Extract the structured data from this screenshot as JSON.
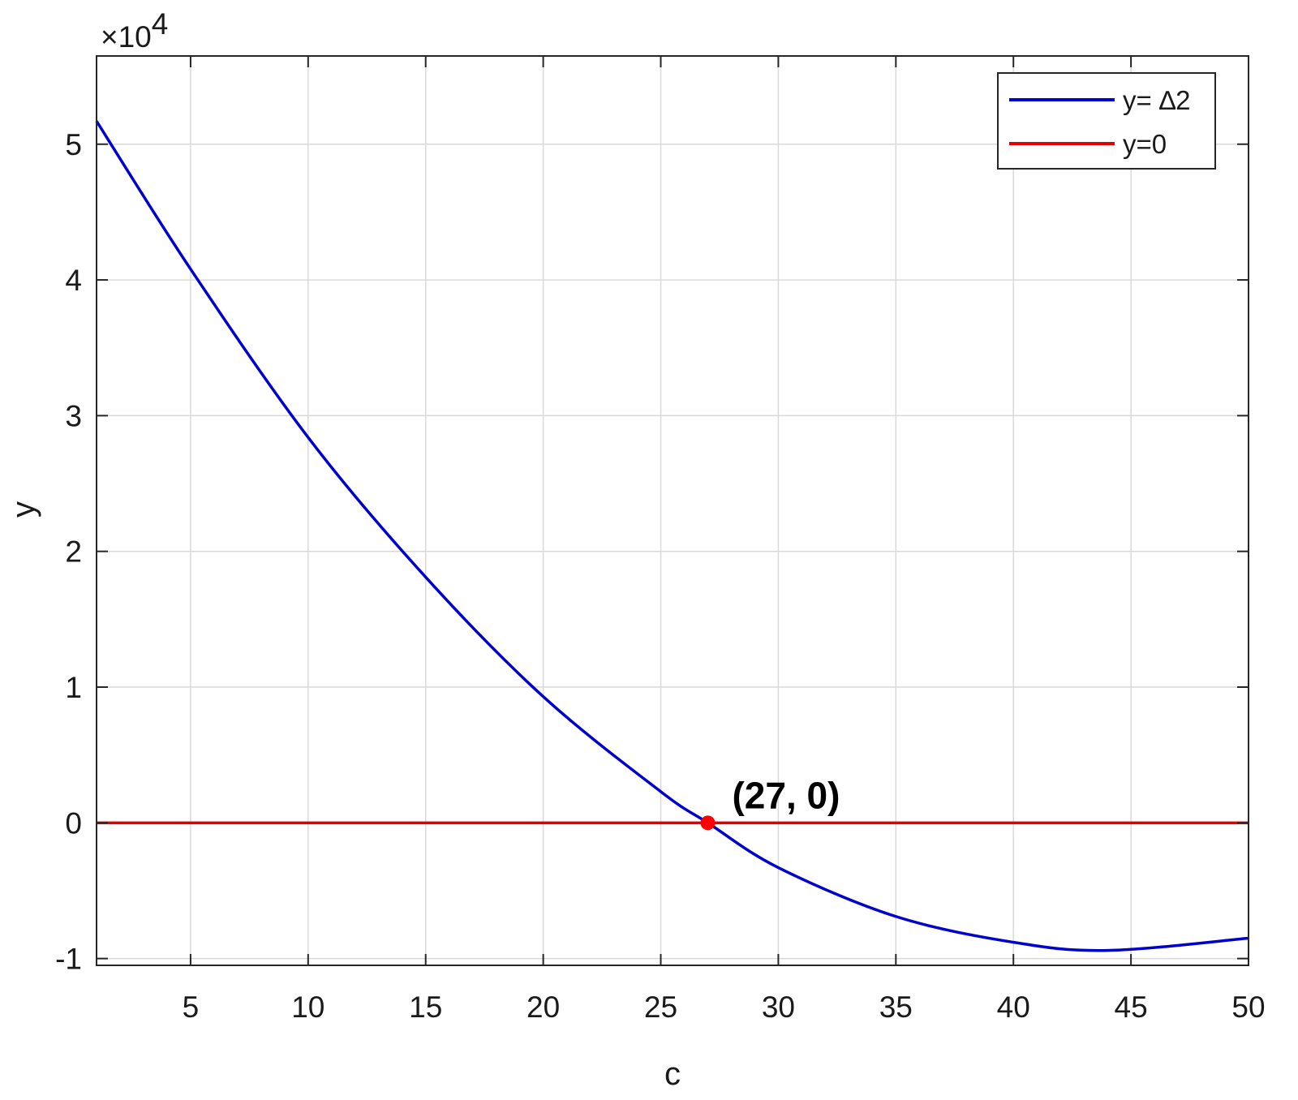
{
  "chart_data": {
    "type": "line",
    "xlabel": "c",
    "ylabel": "y",
    "xlim": [
      1,
      50
    ],
    "ylim": [
      -1.05,
      5.65
    ],
    "y_multiplier_label": "×10",
    "y_multiplier_exponent": "4",
    "x_ticks": [
      5,
      10,
      15,
      20,
      25,
      30,
      35,
      40,
      45,
      50
    ],
    "y_ticks": [
      -1,
      0,
      1,
      2,
      3,
      4,
      5
    ],
    "grid": true,
    "legend_position": "top-right",
    "series": [
      {
        "name": "y= ∆2",
        "color": "#0000cc",
        "x": [
          1,
          5,
          10,
          15,
          20,
          25,
          27,
          30,
          35,
          40,
          44,
          50
        ],
        "y": [
          5.17,
          4.08,
          2.84,
          1.81,
          0.93,
          0.23,
          0.0,
          -0.33,
          -0.69,
          -0.88,
          -0.94,
          -0.85
        ]
      },
      {
        "name": "y=0",
        "color": "#e00000",
        "x": [
          1,
          50
        ],
        "y": [
          0,
          0
        ]
      }
    ],
    "annotation": {
      "x": 27,
      "y": 0,
      "text": "(27, 0)",
      "color": "#ff0000"
    }
  }
}
